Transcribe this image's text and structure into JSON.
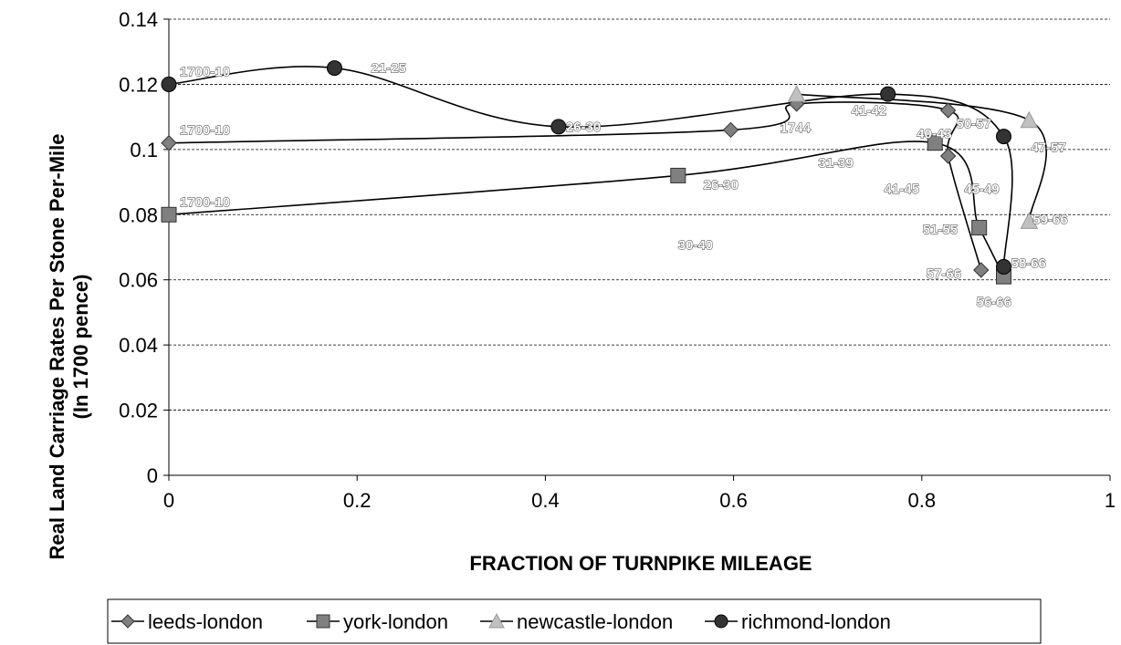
{
  "chart_data": {
    "type": "line",
    "title": "",
    "xlabel": "FRACTION OF TURNPIKE MILEAGE",
    "ylabel_line1": "Real Land Carriage Rates Per Stone Per-Mile",
    "ylabel_line2": "(In 1700 pence)",
    "xlim": [
      0,
      1
    ],
    "ylim": [
      0,
      0.14
    ],
    "x_ticks": [
      0,
      0.2,
      0.4,
      0.6,
      0.8,
      1
    ],
    "x_tick_labels": [
      "0",
      "0.2",
      "0.4",
      "0.6",
      "0.8",
      "1"
    ],
    "y_ticks": [
      0,
      0.02,
      0.04,
      0.06,
      0.08,
      0.1,
      0.12,
      0.14
    ],
    "y_tick_labels": [
      "0",
      "0.02",
      "0.04",
      "0.06",
      "0.08",
      "0.1",
      "0.12",
      "0.14"
    ],
    "grid": "horizontal dashed",
    "legend_position": "bottom",
    "series": [
      {
        "name": "leeds-london",
        "marker": "diamond",
        "color": "#808080",
        "points": [
          {
            "x": 0,
            "y": 0.102,
            "label": "1700-10"
          },
          {
            "x": 0.597,
            "y": 0.106,
            "label": "26-30"
          },
          {
            "x": 0.667,
            "y": 0.114,
            "label": "1744"
          },
          {
            "x": 0.828,
            "y": 0.112,
            "label": ""
          },
          {
            "x": 0.828,
            "y": 0.098,
            "label": "41-45"
          },
          {
            "x": 0.863,
            "y": 0.063,
            "label": "57-66"
          }
        ]
      },
      {
        "name": "york-london",
        "marker": "square",
        "color": "#808080",
        "points": [
          {
            "x": 0,
            "y": 0.08,
            "label": "1700-10"
          },
          {
            "x": 0.541,
            "y": 0.092,
            "label": "30-40"
          },
          {
            "x": 0.814,
            "y": 0.102,
            "label": "40-43"
          },
          {
            "x": 0.861,
            "y": 0.076,
            "label": "51-55"
          },
          {
            "x": 0.887,
            "y": 0.061,
            "label": "56-66"
          }
        ]
      },
      {
        "name": "newcastle-london",
        "marker": "triangle",
        "color": "#c0c0c0",
        "points": [
          {
            "x": 0.667,
            "y": 0.117,
            "label": ""
          },
          {
            "x": 0.914,
            "y": 0.109,
            "label": "47-57"
          },
          {
            "x": 0.914,
            "y": 0.078,
            "label": "59-66"
          }
        ]
      },
      {
        "name": "richmond-london",
        "marker": "circle",
        "color": "#333333",
        "points": [
          {
            "x": 0,
            "y": 0.12,
            "label": "1700-10"
          },
          {
            "x": 0.176,
            "y": 0.125,
            "label": "21-25"
          },
          {
            "x": 0.414,
            "y": 0.107,
            "label": "26-30"
          },
          {
            "x": 0.764,
            "y": 0.117,
            "label": "41-42"
          },
          {
            "x": 0.887,
            "y": 0.104,
            "label": "50-57"
          },
          {
            "x": 0.887,
            "y": 0.064,
            "label": "58-66"
          }
        ]
      }
    ],
    "annotations": [
      {
        "text": "31-39",
        "x": 0.69,
        "y": 0.0945
      },
      {
        "text": "45-49",
        "x": 0.845,
        "y": 0.0865
      }
    ]
  }
}
